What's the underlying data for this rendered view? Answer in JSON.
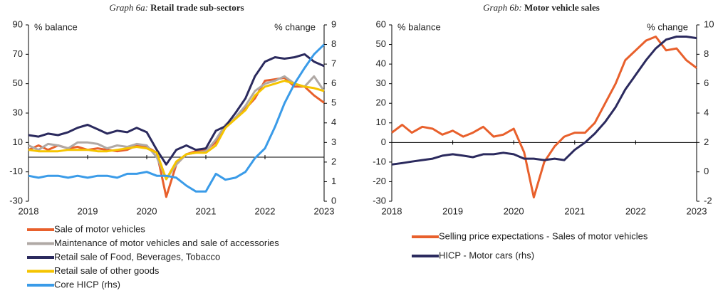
{
  "chart_data": [
    {
      "type": "line",
      "title_prefix": "Graph 6a:",
      "title": "Retail trade sub-sectors",
      "y_label": "% balance",
      "y2_label": "% change",
      "x": [
        2018,
        2018.17,
        2018.33,
        2018.5,
        2018.67,
        2018.83,
        2019,
        2019.17,
        2019.33,
        2019.5,
        2019.67,
        2019.83,
        2020,
        2020.17,
        2020.33,
        2020.5,
        2020.67,
        2020.83,
        2021,
        2021.17,
        2021.33,
        2021.5,
        2021.67,
        2021.83,
        2022,
        2022.17,
        2022.33,
        2022.5,
        2022.67,
        2022.83,
        2023
      ],
      "xlim": [
        2018,
        2023
      ],
      "xticks": [
        2018,
        2019,
        2020,
        2021,
        2022,
        2023
      ],
      "ylim": [
        -30,
        90
      ],
      "yticks": [
        -30,
        -10,
        10,
        30,
        50,
        70,
        90
      ],
      "y2lim": [
        0,
        9
      ],
      "y2ticks": [
        0,
        1,
        2,
        3,
        4,
        5,
        6,
        7,
        8,
        9
      ],
      "grid": false,
      "series": [
        {
          "name": "Sale of motor vehicles",
          "color": "#e8602c",
          "values": [
            5,
            8,
            5,
            8,
            6,
            7,
            5,
            6,
            5,
            4,
            5,
            8,
            7,
            3,
            -27,
            -5,
            2,
            4,
            5,
            10,
            20,
            27,
            33,
            40,
            52,
            53,
            54,
            48,
            48,
            42,
            37
          ]
        },
        {
          "name": "Maintenance of motor vehicles and sale of accessories",
          "color": "#b0a9a5",
          "values": [
            8,
            5,
            9,
            8,
            6,
            10,
            10,
            9,
            6,
            8,
            7,
            9,
            8,
            0,
            -15,
            -5,
            2,
            3,
            4,
            12,
            22,
            27,
            35,
            45,
            50,
            52,
            55,
            50,
            48,
            55,
            45
          ]
        },
        {
          "name": "Retail sale of Food, Beverages, Tobacco",
          "color": "#2b2a5e",
          "values": [
            15,
            14,
            16,
            15,
            17,
            20,
            22,
            19,
            16,
            18,
            17,
            20,
            17,
            5,
            -5,
            5,
            8,
            5,
            6,
            18,
            21,
            30,
            40,
            55,
            65,
            68,
            67,
            68,
            70,
            65,
            62
          ]
        },
        {
          "name": "Retail sale of other goods",
          "color": "#f5c400",
          "values": [
            5,
            4,
            4,
            4,
            5,
            5,
            5,
            4,
            4,
            5,
            6,
            7,
            6,
            3,
            -15,
            -3,
            2,
            3,
            3,
            8,
            20,
            26,
            32,
            42,
            48,
            50,
            52,
            50,
            48,
            47,
            45
          ]
        },
        {
          "name": "Core HICP (rhs)",
          "color": "#3a9be8",
          "axis": "y2",
          "values": [
            1.3,
            1.2,
            1.3,
            1.3,
            1.2,
            1.3,
            1.2,
            1.3,
            1.3,
            1.2,
            1.4,
            1.4,
            1.5,
            1.3,
            1.3,
            1.2,
            0.8,
            0.5,
            0.5,
            1.4,
            1.1,
            1.2,
            1.5,
            2.2,
            2.7,
            3.8,
            5.0,
            6.0,
            6.8,
            7.5,
            8.0
          ]
        }
      ]
    },
    {
      "type": "line",
      "title_prefix": "Graph 6b:",
      "title": "Motor vehicle sales",
      "y_label": "% balance",
      "y2_label": "% change",
      "x": [
        2018,
        2018.17,
        2018.33,
        2018.5,
        2018.67,
        2018.83,
        2019,
        2019.17,
        2019.33,
        2019.5,
        2019.67,
        2019.83,
        2020,
        2020.17,
        2020.33,
        2020.5,
        2020.67,
        2020.83,
        2021,
        2021.17,
        2021.33,
        2021.5,
        2021.67,
        2021.83,
        2022,
        2022.17,
        2022.33,
        2022.5,
        2022.67,
        2022.83,
        2023
      ],
      "xlim": [
        2018,
        2023
      ],
      "xticks": [
        2018,
        2019,
        2020,
        2021,
        2022,
        2023
      ],
      "ylim": [
        -30,
        60
      ],
      "yticks": [
        -30,
        -20,
        -10,
        0,
        10,
        20,
        30,
        40,
        50,
        60
      ],
      "y2lim": [
        -2,
        10
      ],
      "y2ticks": [
        -2,
        0,
        2,
        4,
        6,
        8,
        10
      ],
      "grid": false,
      "series": [
        {
          "name": "Selling price expectations - Sales of motor vehicles",
          "color": "#e8602c",
          "values": [
            5,
            9,
            5,
            8,
            7,
            4,
            6,
            3,
            5,
            8,
            3,
            4,
            7,
            -5,
            -28,
            -10,
            -2,
            3,
            5,
            5,
            10,
            20,
            30,
            42,
            47,
            52,
            54,
            47,
            48,
            42,
            38
          ]
        },
        {
          "name": "HICP - Motor cars (rhs)",
          "color": "#2b2a5e",
          "axis": "y2",
          "values": [
            0.5,
            0.6,
            0.7,
            0.8,
            0.9,
            1.1,
            1.2,
            1.1,
            1.0,
            1.2,
            1.2,
            1.3,
            1.2,
            0.9,
            0.9,
            0.8,
            0.9,
            0.8,
            1.5,
            2.0,
            2.6,
            3.4,
            4.4,
            5.6,
            6.6,
            7.6,
            8.4,
            9.0,
            9.2,
            9.2,
            9.1
          ]
        }
      ]
    }
  ]
}
